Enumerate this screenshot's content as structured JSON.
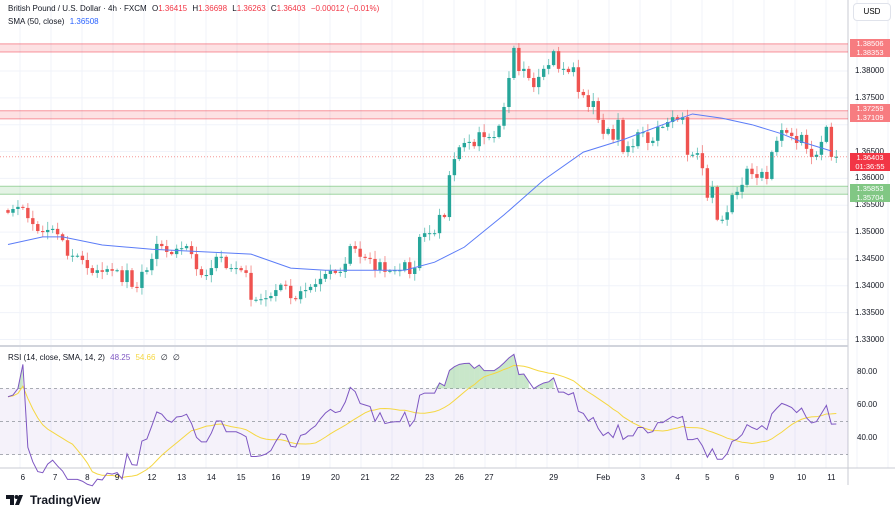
{
  "header": {
    "symbol": "British Pound / U.S. Dollar · 4h · FXCM",
    "o_label": "O",
    "o": "1.36415",
    "h_label": "H",
    "h": "1.36698",
    "l_label": "L",
    "l": "1.36263",
    "c_label": "C",
    "c": "1.36403",
    "change": "−0.00012 (−0.01%)",
    "sma_label": "SMA (50, close)",
    "sma_value": "1.36508",
    "currency": "USD"
  },
  "rsi": {
    "label": "RSI (14, close, SMA, 14, 2)",
    "value": "48.25",
    "sma_value": "54.66",
    "extra1": "∅",
    "extra2": "∅",
    "ticks": [
      "80.00",
      "60.00",
      "40.00"
    ]
  },
  "price_axis": {
    "ticks": [
      "1.38000",
      "1.37500",
      "1.36500",
      "1.36000",
      "1.35500",
      "1.35000",
      "1.34500",
      "1.34000",
      "1.33500",
      "1.33000"
    ],
    "tags": [
      {
        "text": "1.38506",
        "color": "#f77c80"
      },
      {
        "text": "1.38353",
        "color": "#f77c80"
      },
      {
        "text": "1.37259",
        "color": "#f77c80"
      },
      {
        "text": "1.37109",
        "color": "#f77c80"
      },
      {
        "text": "1.36403",
        "color": "#f23645"
      },
      {
        "text": "01:36:55",
        "color": "#f23645"
      },
      {
        "text": "1.35853",
        "color": "#81c784"
      },
      {
        "text": "1.35704",
        "color": "#81c784"
      }
    ]
  },
  "zones": [
    {
      "low": 1.38353,
      "high": 1.38506,
      "color": "#f23645"
    },
    {
      "low": 1.37109,
      "high": 1.37259,
      "color": "#f23645"
    },
    {
      "low": 1.35704,
      "high": 1.35853,
      "color": "#4caf50"
    }
  ],
  "colors": {
    "up": "#26a69a",
    "down": "#ef5350",
    "sma": "#5b7cf7",
    "rsi": "#7e57c2",
    "rsi_sma": "#f5d742"
  },
  "time_axis": [
    {
      "label": "6",
      "index": 3
    },
    {
      "label": "7",
      "index": 9.5
    },
    {
      "label": "8",
      "index": 16
    },
    {
      "label": "9",
      "index": 22
    },
    {
      "label": "12",
      "index": 29
    },
    {
      "label": "13",
      "index": 35
    },
    {
      "label": "14",
      "index": 41
    },
    {
      "label": "15",
      "index": 47
    },
    {
      "label": "16",
      "index": 54
    },
    {
      "label": "19",
      "index": 60
    },
    {
      "label": "20",
      "index": 66
    },
    {
      "label": "21",
      "index": 72
    },
    {
      "label": "22",
      "index": 78
    },
    {
      "label": "23",
      "index": 85
    },
    {
      "label": "26",
      "index": 91
    },
    {
      "label": "27",
      "index": 97
    },
    {
      "label": "29",
      "index": 110
    },
    {
      "label": "Feb",
      "index": 120
    },
    {
      "label": "3",
      "index": 128
    },
    {
      "label": "4",
      "index": 135
    },
    {
      "label": "5",
      "index": 141
    },
    {
      "label": "6",
      "index": 147
    },
    {
      "label": "9",
      "index": 154
    },
    {
      "label": "10",
      "index": 160
    },
    {
      "label": "11",
      "index": 166
    }
  ],
  "chart_data": {
    "type": "candlestick",
    "closes": [
      1.3536,
      1.3543,
      1.3547,
      1.3545,
      1.3526,
      1.3515,
      1.3502,
      1.35,
      1.3504,
      1.3506,
      1.3496,
      1.3485,
      1.3456,
      1.3456,
      1.3456,
      1.3448,
      1.3433,
      1.3424,
      1.3429,
      1.3426,
      1.3431,
      1.3428,
      1.3429,
      1.3407,
      1.3429,
      1.3398,
      1.3396,
      1.3426,
      1.3429,
      1.345,
      1.3478,
      1.3474,
      1.3463,
      1.3459,
      1.3469,
      1.347,
      1.3474,
      1.3459,
      1.3431,
      1.342,
      1.342,
      1.3433,
      1.3454,
      1.3454,
      1.3433,
      1.3433,
      1.3433,
      1.3429,
      1.3424,
      1.3374,
      1.3374,
      1.3375,
      1.3377,
      1.3381,
      1.3392,
      1.3402,
      1.34,
      1.3377,
      1.3375,
      1.339,
      1.3392,
      1.3398,
      1.3403,
      1.3413,
      1.3422,
      1.3428,
      1.3424,
      1.3426,
      1.3441,
      1.3474,
      1.3469,
      1.3454,
      1.3452,
      1.345,
      1.3429,
      1.3444,
      1.3426,
      1.3428,
      1.3429,
      1.3429,
      1.3444,
      1.3422,
      1.3433,
      1.3491,
      1.3498,
      1.3498,
      1.3498,
      1.3532,
      1.3528,
      1.3606,
      1.3636,
      1.3658,
      1.3666,
      1.3668,
      1.366,
      1.3686,
      1.3677,
      1.3677,
      1.3677,
      1.3698,
      1.3733,
      1.3787,
      1.3843,
      1.38,
      1.3804,
      1.3787,
      1.377,
      1.3789,
      1.3804,
      1.3811,
      1.3837,
      1.3804,
      1.3804,
      1.3798,
      1.3807,
      1.3761,
      1.3755,
      1.3733,
      1.3744,
      1.3709,
      1.3683,
      1.3692,
      1.3672,
      1.3709,
      1.3649,
      1.366,
      1.366,
      1.3686,
      1.3686,
      1.3666,
      1.367,
      1.3696,
      1.3696,
      1.3705,
      1.3714,
      1.3709,
      1.3714,
      1.3644,
      1.3644,
      1.3647,
      1.3619,
      1.3564,
      1.3584,
      1.3523,
      1.3523,
      1.3537,
      1.3569,
      1.3575,
      1.3588,
      1.3618,
      1.3608,
      1.3601,
      1.3612,
      1.3599,
      1.3649,
      1.367,
      1.369,
      1.3685,
      1.3679,
      1.3666,
      1.3681,
      1.3655,
      1.364,
      1.3644,
      1.3668,
      1.3696,
      1.364,
      1.36403
    ],
    "sma50": [
      [
        0,
        1.3477
      ],
      [
        7,
        1.3491
      ],
      [
        11,
        1.3491
      ],
      [
        19,
        1.3476
      ],
      [
        29,
        1.3468
      ],
      [
        49,
        1.3459
      ],
      [
        57,
        1.3433
      ],
      [
        64,
        1.3429
      ],
      [
        80,
        1.3429
      ],
      [
        86,
        1.3444
      ],
      [
        92,
        1.3472
      ],
      [
        100,
        1.3532
      ],
      [
        108,
        1.3597
      ],
      [
        116,
        1.3649
      ],
      [
        124,
        1.3672
      ],
      [
        132,
        1.37
      ],
      [
        138,
        1.372
      ],
      [
        144,
        1.3712
      ],
      [
        150,
        1.37
      ],
      [
        156,
        1.3683
      ],
      [
        160,
        1.3668
      ],
      [
        166,
        1.3651
      ]
    ],
    "ylim": [
      1.3286,
      1.388
    ]
  }
}
